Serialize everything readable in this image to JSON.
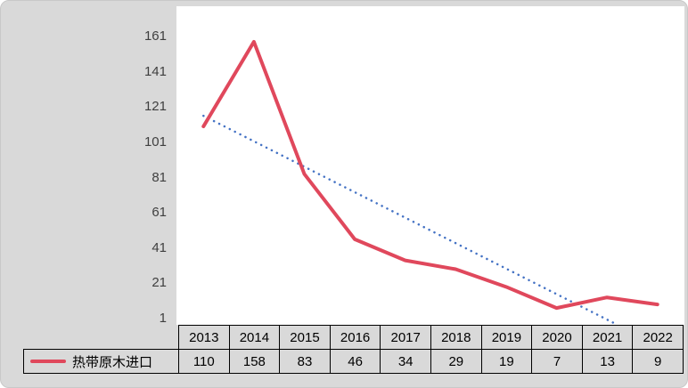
{
  "chart_data": {
    "type": "line",
    "title": "",
    "categories": [
      "2013",
      "2014",
      "2015",
      "2016",
      "2017",
      "2018",
      "2019",
      "2020",
      "2021",
      "2022"
    ],
    "series": [
      {
        "name": "热带原木进口",
        "values": [
          110,
          158,
          83,
          46,
          34,
          29,
          19,
          7,
          13,
          9
        ],
        "color": "#e0485c",
        "style": "solid"
      }
    ],
    "trendline": {
      "color": "#4472c4",
      "style": "dotted",
      "start_value": 116,
      "end_value": -14
    },
    "xlabel": "",
    "ylabel": "",
    "ylim": [
      1,
      161
    ],
    "yticks": [
      161,
      141,
      121,
      101,
      81,
      61,
      41,
      21,
      1
    ],
    "grid": false,
    "legend_position": "bottom-left",
    "data_table_shown": true
  },
  "legend": {
    "label": "热带原木进口"
  },
  "colors": {
    "background": "#d9d9d9",
    "plot_background": "#ffffff",
    "series_red": "#e0485c",
    "trendline_blue": "#4472c4",
    "table_border": "#000000",
    "axis_text": "#3f3f3f"
  }
}
